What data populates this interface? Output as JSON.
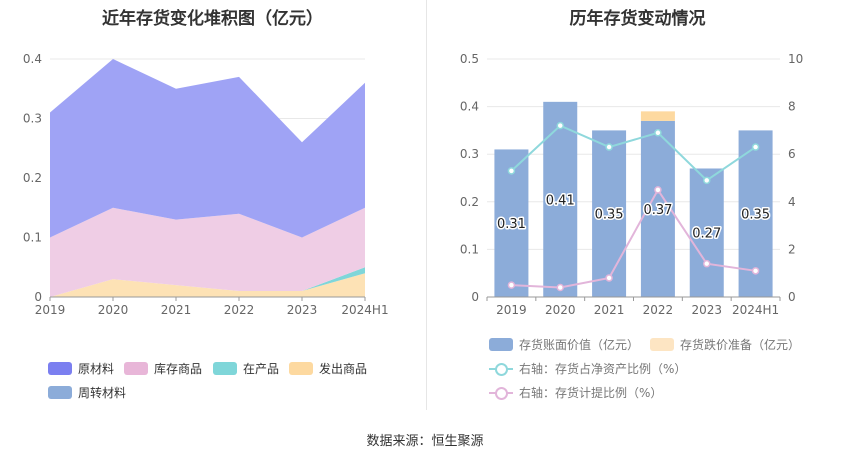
{
  "left_chart": {
    "title": "近年存货变化堆积图（亿元）"
  },
  "right_chart": {
    "title": "历年存货变动情况"
  },
  "source_label": "数据来源：恒生聚源",
  "legend_left": [
    {
      "name": "原材料",
      "color": "#7b7ff0"
    },
    {
      "name": "库存商品",
      "color": "#e8b6d8"
    },
    {
      "name": "在产品",
      "color": "#7fd6d9"
    },
    {
      "name": "发出商品",
      "color": "#fdd9a0"
    },
    {
      "name": "周转材料",
      "color": "#8cacd9"
    }
  ],
  "legend_right": [
    {
      "name": "存货账面价值（亿元）",
      "color": "#8cacd9",
      "kind": "bar"
    },
    {
      "name": "存货跌价准备（亿元）",
      "color": "#fde5c3",
      "kind": "bar"
    },
    {
      "name": "右轴：存货占净资产比例（%）",
      "color": "#8fd8dc",
      "kind": "line"
    },
    {
      "name": "右轴：存货计提比例（%）",
      "color": "#e2b5da",
      "kind": "line"
    }
  ],
  "chart_data": [
    {
      "type": "area",
      "stacked": true,
      "title": "近年存货变化堆积图（亿元）",
      "categories": [
        "2019",
        "2020",
        "2021",
        "2022",
        "2023",
        "2024H1"
      ],
      "ylim": [
        0,
        0.4
      ],
      "yticks": [
        "0",
        "0.1",
        "0.2",
        "0.3",
        "0.4"
      ],
      "grid": true,
      "legend_position": "bottom",
      "series": [
        {
          "name": "发出商品",
          "color": "#fde2b5",
          "values": [
            0.0,
            0.03,
            0.02,
            0.01,
            0.01,
            0.04
          ]
        },
        {
          "name": "在产品",
          "color": "#7fd6d9",
          "values": [
            0.0,
            0.0,
            0.0,
            0.0,
            0.0,
            0.01
          ]
        },
        {
          "name": "库存商品",
          "color": "#efcde5",
          "values": [
            0.1,
            0.12,
            0.11,
            0.13,
            0.09,
            0.1
          ]
        },
        {
          "name": "原材料",
          "color": "#9fa3f5",
          "values": [
            0.21,
            0.25,
            0.22,
            0.23,
            0.16,
            0.21
          ]
        }
      ]
    },
    {
      "type": "bar",
      "title": "历年存货变动情况",
      "categories": [
        "2019",
        "2020",
        "2021",
        "2022",
        "2023",
        "2024H1"
      ],
      "ylim": [
        0,
        0.5
      ],
      "yticks": [
        "0",
        "0.1",
        "0.2",
        "0.3",
        "0.4",
        "0.5"
      ],
      "y2lim": [
        0,
        10
      ],
      "y2ticks": [
        "0",
        "2",
        "4",
        "6",
        "8",
        "10"
      ],
      "grid": true,
      "legend_position": "bottom",
      "bars": [
        {
          "name": "存货账面价值（亿元）",
          "color": "#8cacd9",
          "values": [
            0.31,
            0.41,
            0.35,
            0.37,
            0.27,
            0.35
          ],
          "labels": [
            "0.31",
            "0.41",
            "0.35",
            "0.37",
            "0.27",
            "0.35"
          ]
        },
        {
          "name": "存货跌价准备（亿元）",
          "color": "#fdd9a0",
          "values": [
            0,
            0,
            0,
            0.02,
            0,
            0
          ]
        }
      ],
      "lines": [
        {
          "name": "右轴：存货占净资产比例（%）",
          "axis": "right",
          "color": "#8fd8dc",
          "values": [
            5.3,
            7.2,
            6.3,
            6.9,
            4.9,
            6.3
          ]
        },
        {
          "name": "右轴：存货计提比例（%）",
          "axis": "right",
          "color": "#e2b5da",
          "values": [
            0.5,
            0.4,
            0.8,
            4.5,
            1.4,
            1.1
          ]
        }
      ]
    }
  ]
}
